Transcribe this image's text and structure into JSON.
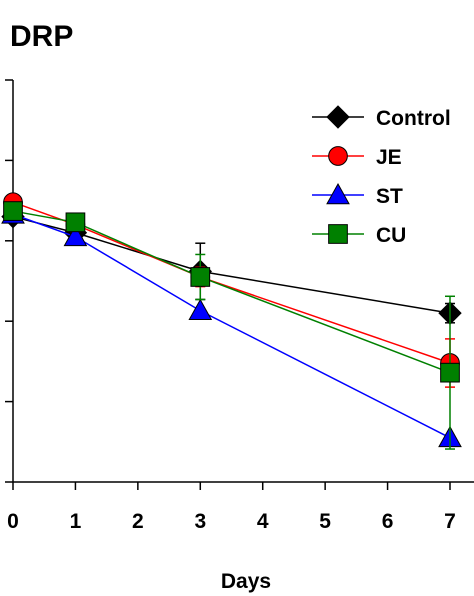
{
  "chart_data": {
    "type": "line",
    "title": "DRP",
    "xlabel": "Days",
    "ylabel": "",
    "x_ticks": [
      0,
      1,
      2,
      3,
      4,
      5,
      6,
      7
    ],
    "xlim": [
      0,
      7
    ],
    "ylim": [
      0,
      5
    ],
    "legend_position": "top-right",
    "series": [
      {
        "name": "Control",
        "color": "#000000",
        "marker": "diamond",
        "x": [
          0,
          1,
          3,
          7
        ],
        "y": [
          3.3,
          3.1,
          2.62,
          2.1
        ],
        "err": [
          0.0,
          0.0,
          0.35,
          0.12
        ]
      },
      {
        "name": "JE",
        "color": "#ff0000",
        "marker": "circle",
        "x": [
          0,
          1,
          3,
          7
        ],
        "y": [
          3.48,
          3.2,
          2.55,
          1.48
        ],
        "err": [
          0.05,
          0.0,
          0.12,
          0.3
        ]
      },
      {
        "name": "ST",
        "color": "#0000ff",
        "marker": "triangle",
        "x": [
          0,
          1,
          3,
          7
        ],
        "y": [
          3.33,
          3.05,
          2.13,
          0.55
        ],
        "err": [
          0.0,
          0.0,
          0.0,
          0.0
        ]
      },
      {
        "name": "CU",
        "color": "#008000",
        "marker": "square",
        "x": [
          0,
          1,
          3,
          7
        ],
        "y": [
          3.37,
          3.23,
          2.55,
          1.36
        ],
        "err": [
          0.05,
          0.0,
          0.28,
          0.95
        ]
      }
    ]
  }
}
